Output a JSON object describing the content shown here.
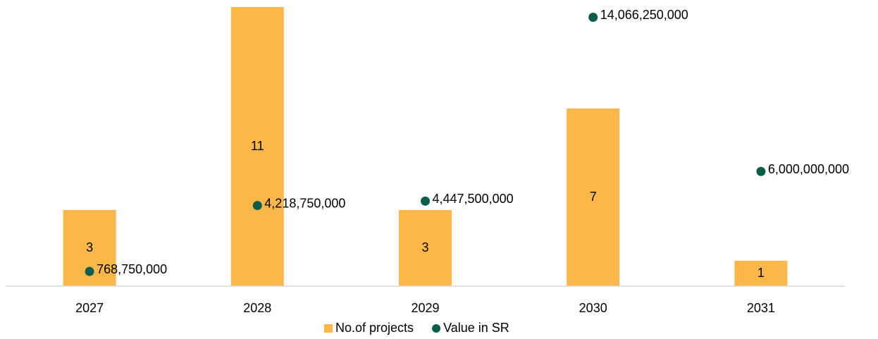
{
  "chart_data": {
    "type": "bar",
    "categories": [
      "2027",
      "2028",
      "2029",
      "2030",
      "2031"
    ],
    "series": [
      {
        "name": "No.of projects",
        "type": "bar",
        "color": "#fbb848",
        "values": [
          3,
          11,
          3,
          7,
          1
        ]
      },
      {
        "name": "Value in SR",
        "type": "scatter",
        "axis": "y2",
        "color": "#0b5e4b",
        "values": [
          768750000,
          4218750000,
          4447500000,
          14066250000,
          6000000000
        ],
        "value_labels": [
          "768,750,000",
          "4,218,750,000",
          "4,447,500,000",
          "14,066,250,000",
          "6,000,000,000"
        ]
      }
    ],
    "ylim": [
      0,
      11
    ],
    "y2lim": [
      0,
      14600000000
    ],
    "legend": "bottom"
  }
}
